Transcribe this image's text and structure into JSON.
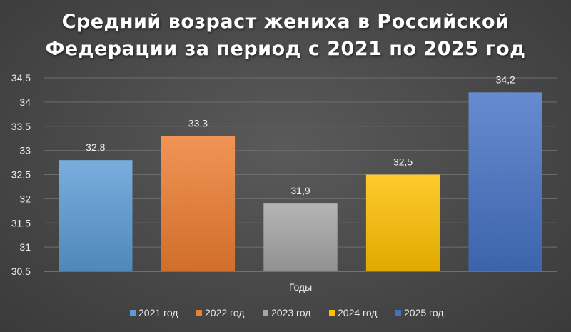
{
  "chart_data": {
    "type": "bar",
    "title_lines": [
      "Средний возраст жениха в Российской",
      "Федерации за период с 2021 по 2025 год"
    ],
    "xlabel": "Годы",
    "ylabel": "",
    "ylim": [
      30.5,
      34.5
    ],
    "ytick_step": 0.5,
    "ytick_labels": [
      "30,5",
      "31",
      "31,5",
      "32",
      "32,5",
      "33",
      "33,5",
      "34",
      "34,5"
    ],
    "grid": true,
    "legend_position": "bottom",
    "series": [
      {
        "name": "2021 год",
        "value": 32.8,
        "label": "32,8",
        "color": "#5b9bd5"
      },
      {
        "name": "2022 год",
        "value": 33.3,
        "label": "33,3",
        "color": "#ed7d31"
      },
      {
        "name": "2023 год",
        "value": 31.9,
        "label": "31,9",
        "color": "#a5a5a5"
      },
      {
        "name": "2024 год",
        "value": 32.5,
        "label": "32,5",
        "color": "#ffc000"
      },
      {
        "name": "2025 год",
        "value": 34.2,
        "label": "34,2",
        "color": "#4472c4"
      }
    ]
  }
}
